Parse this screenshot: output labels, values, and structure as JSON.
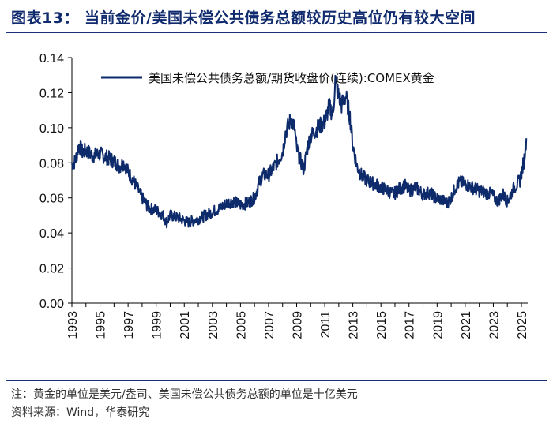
{
  "header": {
    "title": "图表13：   当前金价/美国未偿公共债务总额较历史高位仍有较大空间"
  },
  "footer": {
    "note": "注：黄金的单位是美元/盎司、美国未偿公共债务总额的单位是十亿美元",
    "source": "资料来源：Wind，华泰研究"
  },
  "colors": {
    "series": "#0d2a6b",
    "axis": "#000000",
    "rule": "#1b2f7a"
  },
  "chart_data": {
    "type": "line",
    "title": "",
    "xlabel": "",
    "ylabel": "",
    "xlim": [
      1993,
      2025.45
    ],
    "ylim": [
      0,
      0.14
    ],
    "y_ticks": [
      0.0,
      0.02,
      0.04,
      0.06,
      0.08,
      0.1,
      0.12,
      0.14
    ],
    "y_tick_labels": [
      "0.00",
      "0.02",
      "0.04",
      "0.06",
      "0.08",
      "0.10",
      "0.12",
      "0.14"
    ],
    "x_ticks": [
      1993,
      1995,
      1997,
      1999,
      2001,
      2003,
      2005,
      2007,
      2009,
      2011,
      2013,
      2015,
      2017,
      2019,
      2021,
      2023,
      2025
    ],
    "x_tick_labels": [
      "1993",
      "1995",
      "1997",
      "1999",
      "2001",
      "2003",
      "2005",
      "2007",
      "2009",
      "2011",
      "2013",
      "2015",
      "2017",
      "2019",
      "2021",
      "2023",
      "2025"
    ],
    "grid": false,
    "legend_position": "top",
    "series": [
      {
        "name": "美国未偿公共债务总额/期货收盘价(连续):COMEX黄金",
        "x": [
          1993.0,
          1993.25,
          1993.5,
          1993.75,
          1994.0,
          1994.5,
          1995.0,
          1995.5,
          1996.0,
          1996.4,
          1996.7,
          1997.0,
          1997.5,
          1998.0,
          1998.5,
          1999.0,
          1999.5,
          1999.75,
          2000.0,
          2000.5,
          2001.0,
          2001.3,
          2001.6,
          2002.0,
          2002.5,
          2003.0,
          2003.5,
          2004.0,
          2004.5,
          2005.0,
          2005.5,
          2006.0,
          2006.3,
          2006.6,
          2007.0,
          2007.5,
          2008.0,
          2008.2,
          2008.6,
          2008.85,
          2009.0,
          2009.2,
          2009.5,
          2009.8,
          2010.0,
          2010.5,
          2011.0,
          2011.3,
          2011.6,
          2011.75,
          2011.9,
          2012.2,
          2012.5,
          2012.8,
          2013.0,
          2013.3,
          2013.6,
          2014.0,
          2014.5,
          2015.0,
          2015.5,
          2015.9,
          2016.3,
          2016.7,
          2017.0,
          2017.5,
          2018.0,
          2018.5,
          2018.9,
          2019.3,
          2019.7,
          2020.0,
          2020.3,
          2020.6,
          2021.0,
          2021.5,
          2022.0,
          2022.5,
          2022.9,
          2023.3,
          2023.7,
          2024.0,
          2024.5,
          2024.9,
          2025.2,
          2025.35
        ],
        "values": [
          0.079,
          0.081,
          0.09,
          0.086,
          0.087,
          0.084,
          0.085,
          0.083,
          0.081,
          0.078,
          0.08,
          0.075,
          0.068,
          0.06,
          0.054,
          0.053,
          0.05,
          0.046,
          0.05,
          0.049,
          0.047,
          0.046,
          0.047,
          0.048,
          0.05,
          0.052,
          0.054,
          0.057,
          0.058,
          0.056,
          0.057,
          0.06,
          0.068,
          0.073,
          0.073,
          0.079,
          0.086,
          0.097,
          0.105,
          0.1,
          0.088,
          0.083,
          0.076,
          0.09,
          0.095,
          0.1,
          0.103,
          0.112,
          0.108,
          0.128,
          0.121,
          0.113,
          0.118,
          0.106,
          0.09,
          0.078,
          0.073,
          0.07,
          0.068,
          0.066,
          0.064,
          0.062,
          0.065,
          0.067,
          0.064,
          0.066,
          0.062,
          0.063,
          0.06,
          0.059,
          0.057,
          0.06,
          0.066,
          0.069,
          0.068,
          0.066,
          0.064,
          0.063,
          0.062,
          0.058,
          0.062,
          0.058,
          0.066,
          0.07,
          0.082,
          0.094
        ]
      }
    ]
  }
}
